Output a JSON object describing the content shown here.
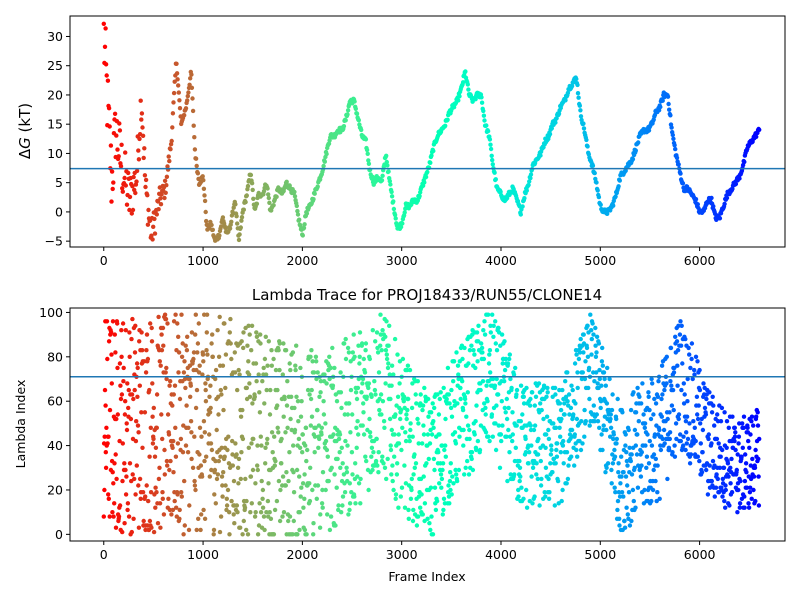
{
  "chart_data": [
    {
      "type": "scatter",
      "title": "",
      "xlabel": "",
      "ylabel": "ΔG (kT)",
      "ylabel_italic_part": "G",
      "xlim": [
        -340,
        6860
      ],
      "ylim": [
        -6,
        33.5
      ],
      "xticks": [
        0,
        1000,
        2000,
        3000,
        4000,
        5000,
        6000
      ],
      "yticks": [
        -5,
        0,
        5,
        10,
        15,
        20,
        25,
        30
      ],
      "hline": {
        "y": 7.4,
        "color": "#1f77b4"
      },
      "colormap": "rainbow (reversed: red at frame 0, violet at last frame)",
      "x_max_frame": 6600,
      "series_trace": [
        [
          0,
          30
        ],
        [
          40,
          18
        ],
        [
          80,
          5
        ],
        [
          120,
          14
        ],
        [
          180,
          8
        ],
        [
          260,
          2
        ],
        [
          330,
          6
        ],
        [
          380,
          20
        ],
        [
          420,
          4
        ],
        [
          480,
          -4
        ],
        [
          560,
          2
        ],
        [
          620,
          4
        ],
        [
          680,
          12
        ],
        [
          730,
          26
        ],
        [
          780,
          15
        ],
        [
          830,
          18
        ],
        [
          880,
          24
        ],
        [
          920,
          10
        ],
        [
          960,
          5
        ],
        [
          1000,
          6
        ],
        [
          1040,
          -3
        ],
        [
          1080,
          -2
        ],
        [
          1120,
          -5
        ],
        [
          1160,
          -4
        ],
        [
          1200,
          -1
        ],
        [
          1240,
          -4
        ],
        [
          1280,
          -2
        ],
        [
          1320,
          2
        ],
        [
          1360,
          -5
        ],
        [
          1400,
          0
        ],
        [
          1440,
          3
        ],
        [
          1480,
          7
        ],
        [
          1520,
          0
        ],
        [
          1560,
          3
        ],
        [
          1600,
          3
        ],
        [
          1640,
          5
        ],
        [
          1680,
          0
        ],
        [
          1720,
          2
        ],
        [
          1760,
          4
        ],
        [
          1800,
          3
        ],
        [
          1840,
          5
        ],
        [
          1880,
          4
        ],
        [
          1920,
          3
        ],
        [
          1960,
          -1
        ],
        [
          2000,
          -4
        ],
        [
          2040,
          0
        ],
        [
          2080,
          1
        ],
        [
          2120,
          3
        ],
        [
          2160,
          5
        ],
        [
          2200,
          7
        ],
        [
          2240,
          10
        ],
        [
          2280,
          13
        ],
        [
          2320,
          13
        ],
        [
          2360,
          14
        ],
        [
          2400,
          14
        ],
        [
          2440,
          16
        ],
        [
          2480,
          19
        ],
        [
          2520,
          19
        ],
        [
          2560,
          16
        ],
        [
          2600,
          13
        ],
        [
          2640,
          12
        ],
        [
          2680,
          7
        ],
        [
          2720,
          5
        ],
        [
          2760,
          6
        ],
        [
          2800,
          5
        ],
        [
          2840,
          10
        ],
        [
          2880,
          5
        ],
        [
          2920,
          1
        ],
        [
          2960,
          -3
        ],
        [
          3000,
          -2
        ],
        [
          3040,
          1
        ],
        [
          3080,
          1
        ],
        [
          3120,
          2
        ],
        [
          3160,
          2
        ],
        [
          3200,
          4
        ],
        [
          3240,
          6
        ],
        [
          3280,
          8
        ],
        [
          3320,
          11
        ],
        [
          3360,
          13
        ],
        [
          3400,
          14
        ],
        [
          3440,
          15
        ],
        [
          3480,
          17
        ],
        [
          3520,
          18
        ],
        [
          3560,
          19
        ],
        [
          3600,
          21
        ],
        [
          3640,
          24
        ],
        [
          3680,
          20
        ],
        [
          3720,
          19
        ],
        [
          3760,
          20
        ],
        [
          3800,
          20
        ],
        [
          3840,
          15
        ],
        [
          3880,
          13
        ],
        [
          3920,
          8
        ],
        [
          3960,
          4
        ],
        [
          4000,
          3
        ],
        [
          4040,
          2
        ],
        [
          4080,
          3
        ],
        [
          4120,
          4
        ],
        [
          4160,
          2
        ],
        [
          4200,
          0
        ],
        [
          4240,
          3
        ],
        [
          4280,
          5
        ],
        [
          4320,
          8
        ],
        [
          4360,
          9
        ],
        [
          4400,
          10
        ],
        [
          4440,
          12
        ],
        [
          4480,
          13
        ],
        [
          4520,
          15
        ],
        [
          4560,
          16
        ],
        [
          4600,
          18
        ],
        [
          4640,
          19
        ],
        [
          4680,
          21
        ],
        [
          4720,
          22
        ],
        [
          4760,
          23
        ],
        [
          4800,
          17
        ],
        [
          4840,
          14
        ],
        [
          4880,
          10
        ],
        [
          4920,
          8
        ],
        [
          4960,
          5
        ],
        [
          5000,
          1
        ],
        [
          5040,
          0
        ],
        [
          5080,
          0
        ],
        [
          5120,
          1
        ],
        [
          5160,
          3
        ],
        [
          5200,
          6
        ],
        [
          5240,
          7
        ],
        [
          5280,
          8
        ],
        [
          5320,
          9
        ],
        [
          5360,
          11
        ],
        [
          5400,
          13
        ],
        [
          5440,
          14
        ],
        [
          5480,
          14
        ],
        [
          5520,
          15
        ],
        [
          5560,
          17
        ],
        [
          5600,
          18
        ],
        [
          5640,
          20
        ],
        [
          5680,
          20
        ],
        [
          5720,
          14
        ],
        [
          5760,
          10
        ],
        [
          5800,
          7
        ],
        [
          5840,
          4
        ],
        [
          5880,
          4
        ],
        [
          5920,
          3
        ],
        [
          5960,
          2
        ],
        [
          6000,
          0
        ],
        [
          6040,
          0
        ],
        [
          6080,
          2
        ],
        [
          6120,
          2
        ],
        [
          6160,
          -1
        ],
        [
          6200,
          -1
        ],
        [
          6240,
          1
        ],
        [
          6280,
          3
        ],
        [
          6320,
          4
        ],
        [
          6360,
          5
        ],
        [
          6400,
          6
        ],
        [
          6440,
          8
        ],
        [
          6480,
          11
        ],
        [
          6520,
          12
        ],
        [
          6560,
          13
        ],
        [
          6600,
          14
        ]
      ]
    },
    {
      "type": "scatter",
      "title": "Lambda Trace for PROJ18433/RUN55/CLONE14",
      "xlabel": "Frame Index",
      "ylabel": "Lambda Index",
      "xlim": [
        -340,
        6860
      ],
      "ylim": [
        -3,
        102
      ],
      "xticks": [
        0,
        1000,
        2000,
        3000,
        4000,
        5000,
        6000
      ],
      "yticks": [
        0,
        20,
        40,
        60,
        80,
        100
      ],
      "hline": {
        "y": 71,
        "color": "#1f77b4"
      },
      "colormap": "rainbow (reversed: red at frame 0, violet at last frame)",
      "x_max_frame": 6600,
      "lambda_center": [
        [
          0,
          50
        ],
        [
          400,
          50
        ],
        [
          800,
          50
        ],
        [
          1200,
          50
        ],
        [
          1600,
          45
        ],
        [
          2000,
          40
        ],
        [
          2400,
          45
        ],
        [
          2800,
          65
        ],
        [
          3000,
          45
        ],
        [
          3300,
          30
        ],
        [
          3600,
          55
        ],
        [
          3900,
          70
        ],
        [
          4200,
          40
        ],
        [
          4600,
          40
        ],
        [
          4900,
          75
        ],
        [
          5200,
          30
        ],
        [
          5600,
          45
        ],
        [
          5800,
          70
        ],
        [
          6100,
          40
        ],
        [
          6400,
          30
        ],
        [
          6600,
          35
        ]
      ],
      "lambda_spread": [
        [
          0,
          50
        ],
        [
          1200,
          50
        ],
        [
          2000,
          45
        ],
        [
          2800,
          38
        ],
        [
          3300,
          32
        ],
        [
          3900,
          32
        ],
        [
          4300,
          30
        ],
        [
          4900,
          25
        ],
        [
          5300,
          30
        ],
        [
          5800,
          30
        ],
        [
          6300,
          22
        ],
        [
          6600,
          22
        ]
      ]
    }
  ]
}
